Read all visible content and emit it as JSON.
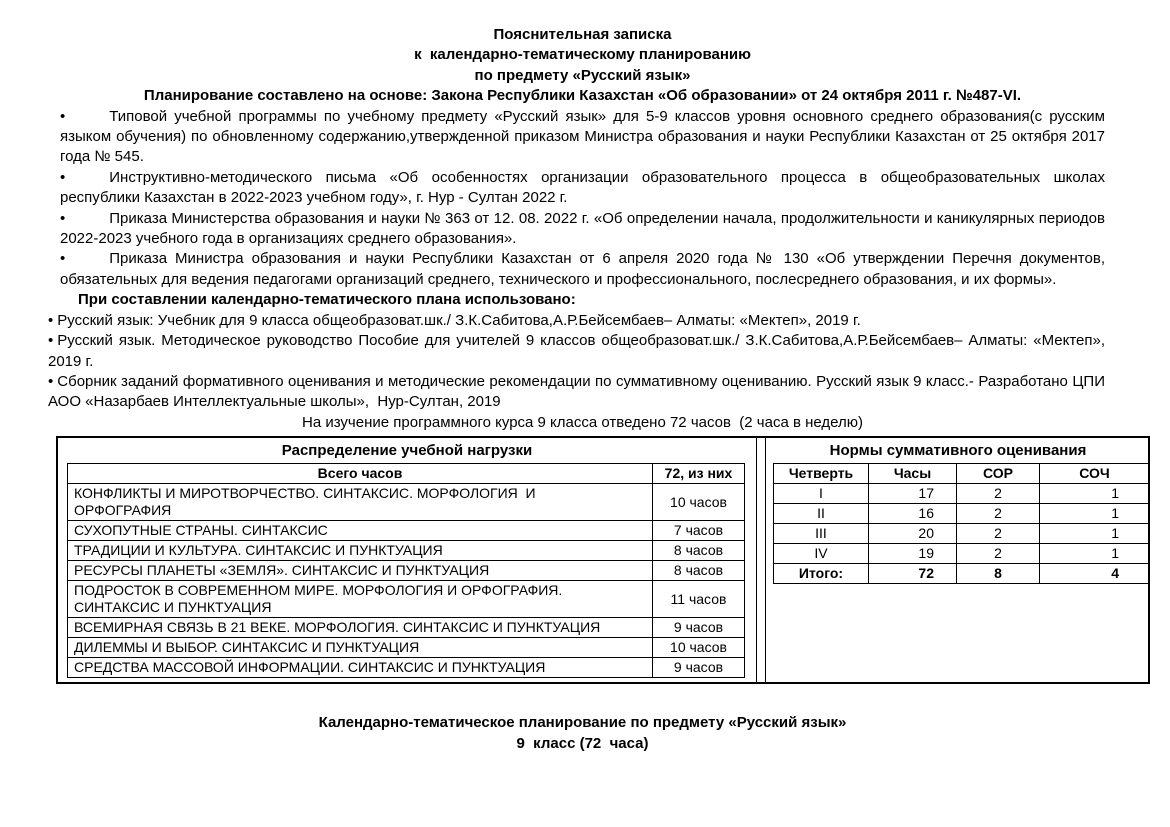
{
  "title": {
    "line1": "Пояснительная записка",
    "line2": "к  календарно-тематическому планированию",
    "line3": "по предмету «Русский язык»",
    "line4": "Планирование составлено на основе: Закона Республики Казахстан «Об образовании» от 24 октября 2011 г. №487-VI."
  },
  "bullet_char": "•",
  "basis_bullets": [
    "Типовой учебной программы по учебному предмету «Русский язык» для 5-9 классов уровня основного среднего образования(с русским языком обучения) по обновленному содержанию,утвержденной приказом Министра образования и науки Республики Казахстан от 25 октября 2017 года № 545.",
    "Инструктивно-методического письма «Об особенностях организации образовательного процесса в общеобразовательных школах республики Казахстан в 2022-2023 учебном году», г. Нур - Султан 2022 г.",
    "Приказа Министерства образования и науки № 363 от 12. 08. 2022 г. «Об определении начала, продолжительности и каникулярных периодов 2022-2023 учебного года в организациях среднего образования».",
    "Приказа Министра образования и науки Республики Казахстан от 6 апреля 2020 года № 130 «Об утверждении Перечня документов, обязательных для ведения педагогами организаций среднего, технического и профессионального, послесреднего образования, и их формы»."
  ],
  "usage_heading": "При составлении календарно-тематического плана использовано:",
  "books": [
    "Русский язык: Учебник для 9 класса общеобразоват.шк./ З.К.Сабитова,А.Р.Бейсембаев– Алматы: «Мектеп», 2019 г.",
    "Русский язык. Методическое руководство Пособие для учителей 9 классов общеобразоват.шк./ З.К.Сабитова,А.Р.Бейсембаев– Алматы: «Мектеп», 2019 г.",
    "Сборник заданий формативного оценивания и методические рекомендации по суммативному оцениванию. Русский язык 9 класс.- Разработано ЦПИ АОО «Назарбаев Интеллектуальные школы»,  Нур-Султан, 2019"
  ],
  "course_note": "На изучение программного курса 9 класса отведено 72 часов  (2 часа в неделю)",
  "load_table": {
    "title": "Распределение учебной нагрузки",
    "col_theme": "Всего часов",
    "col_hours": "72, из них",
    "rows": [
      {
        "theme": "КОНФЛИКТЫ И МИРОТВОРЧЕСТВО. СИНТАКСИС. МОРФОЛОГИЯ  И\nОРФОГРАФИЯ",
        "hours": "10 часов"
      },
      {
        "theme": "СУХОПУТНЫЕ СТРАНЫ. СИНТАКСИС",
        "hours": "7 часов"
      },
      {
        "theme": "ТРАДИЦИИ И КУЛЬТУРА. СИНТАКСИС И ПУНКТУАЦИЯ",
        "hours": "8 часов"
      },
      {
        "theme": "РЕСУРСЫ ПЛАНЕТЫ «ЗЕМЛЯ». СИНТАКСИС И ПУНКТУАЦИЯ",
        "hours": "8 часов"
      },
      {
        "theme": "ПОДРОСТОК В СОВРЕМЕННОМ МИРЕ. МОРФОЛОГИЯ И ОРФОГРАФИЯ.\nСИНТАКСИС И ПУНКТУАЦИЯ",
        "hours": "11 часов"
      },
      {
        "theme": "ВСЕМИРНАЯ СВЯЗЬ В 21 ВЕКЕ. МОРФОЛОГИЯ. СИНТАКСИС И ПУНКТУАЦИЯ",
        "hours": "9 часов"
      },
      {
        "theme": "ДИЛЕММЫ И ВЫБОР. СИНТАКСИС И ПУНКТУАЦИЯ",
        "hours": "10 часов"
      },
      {
        "theme": "СРЕДСТВА МАССОВОЙ ИНФОРМАЦИИ. СИНТАКСИС И ПУНКТУАЦИЯ",
        "hours": "9 часов"
      }
    ]
  },
  "norms_table": {
    "title": "Нормы суммативного оценивания",
    "headers": [
      "Четверть",
      "Часы",
      "СОР",
      "СОЧ"
    ],
    "rows": [
      {
        "q": "I",
        "hours": "17",
        "sor": "2",
        "soch": "1"
      },
      {
        "q": "II",
        "hours": "16",
        "sor": "2",
        "soch": "1"
      },
      {
        "q": "III",
        "hours": "20",
        "sor": "2",
        "soch": "1"
      },
      {
        "q": "IV",
        "hours": "19",
        "sor": "2",
        "soch": "1"
      }
    ],
    "total": {
      "label": "Итого:",
      "hours": "72",
      "sor": "8",
      "soch": "4"
    }
  },
  "footer": {
    "line1": "Календарно-тематическое планирование по предмету «Русский язык»",
    "line2": "9  класс (72  часа)"
  }
}
